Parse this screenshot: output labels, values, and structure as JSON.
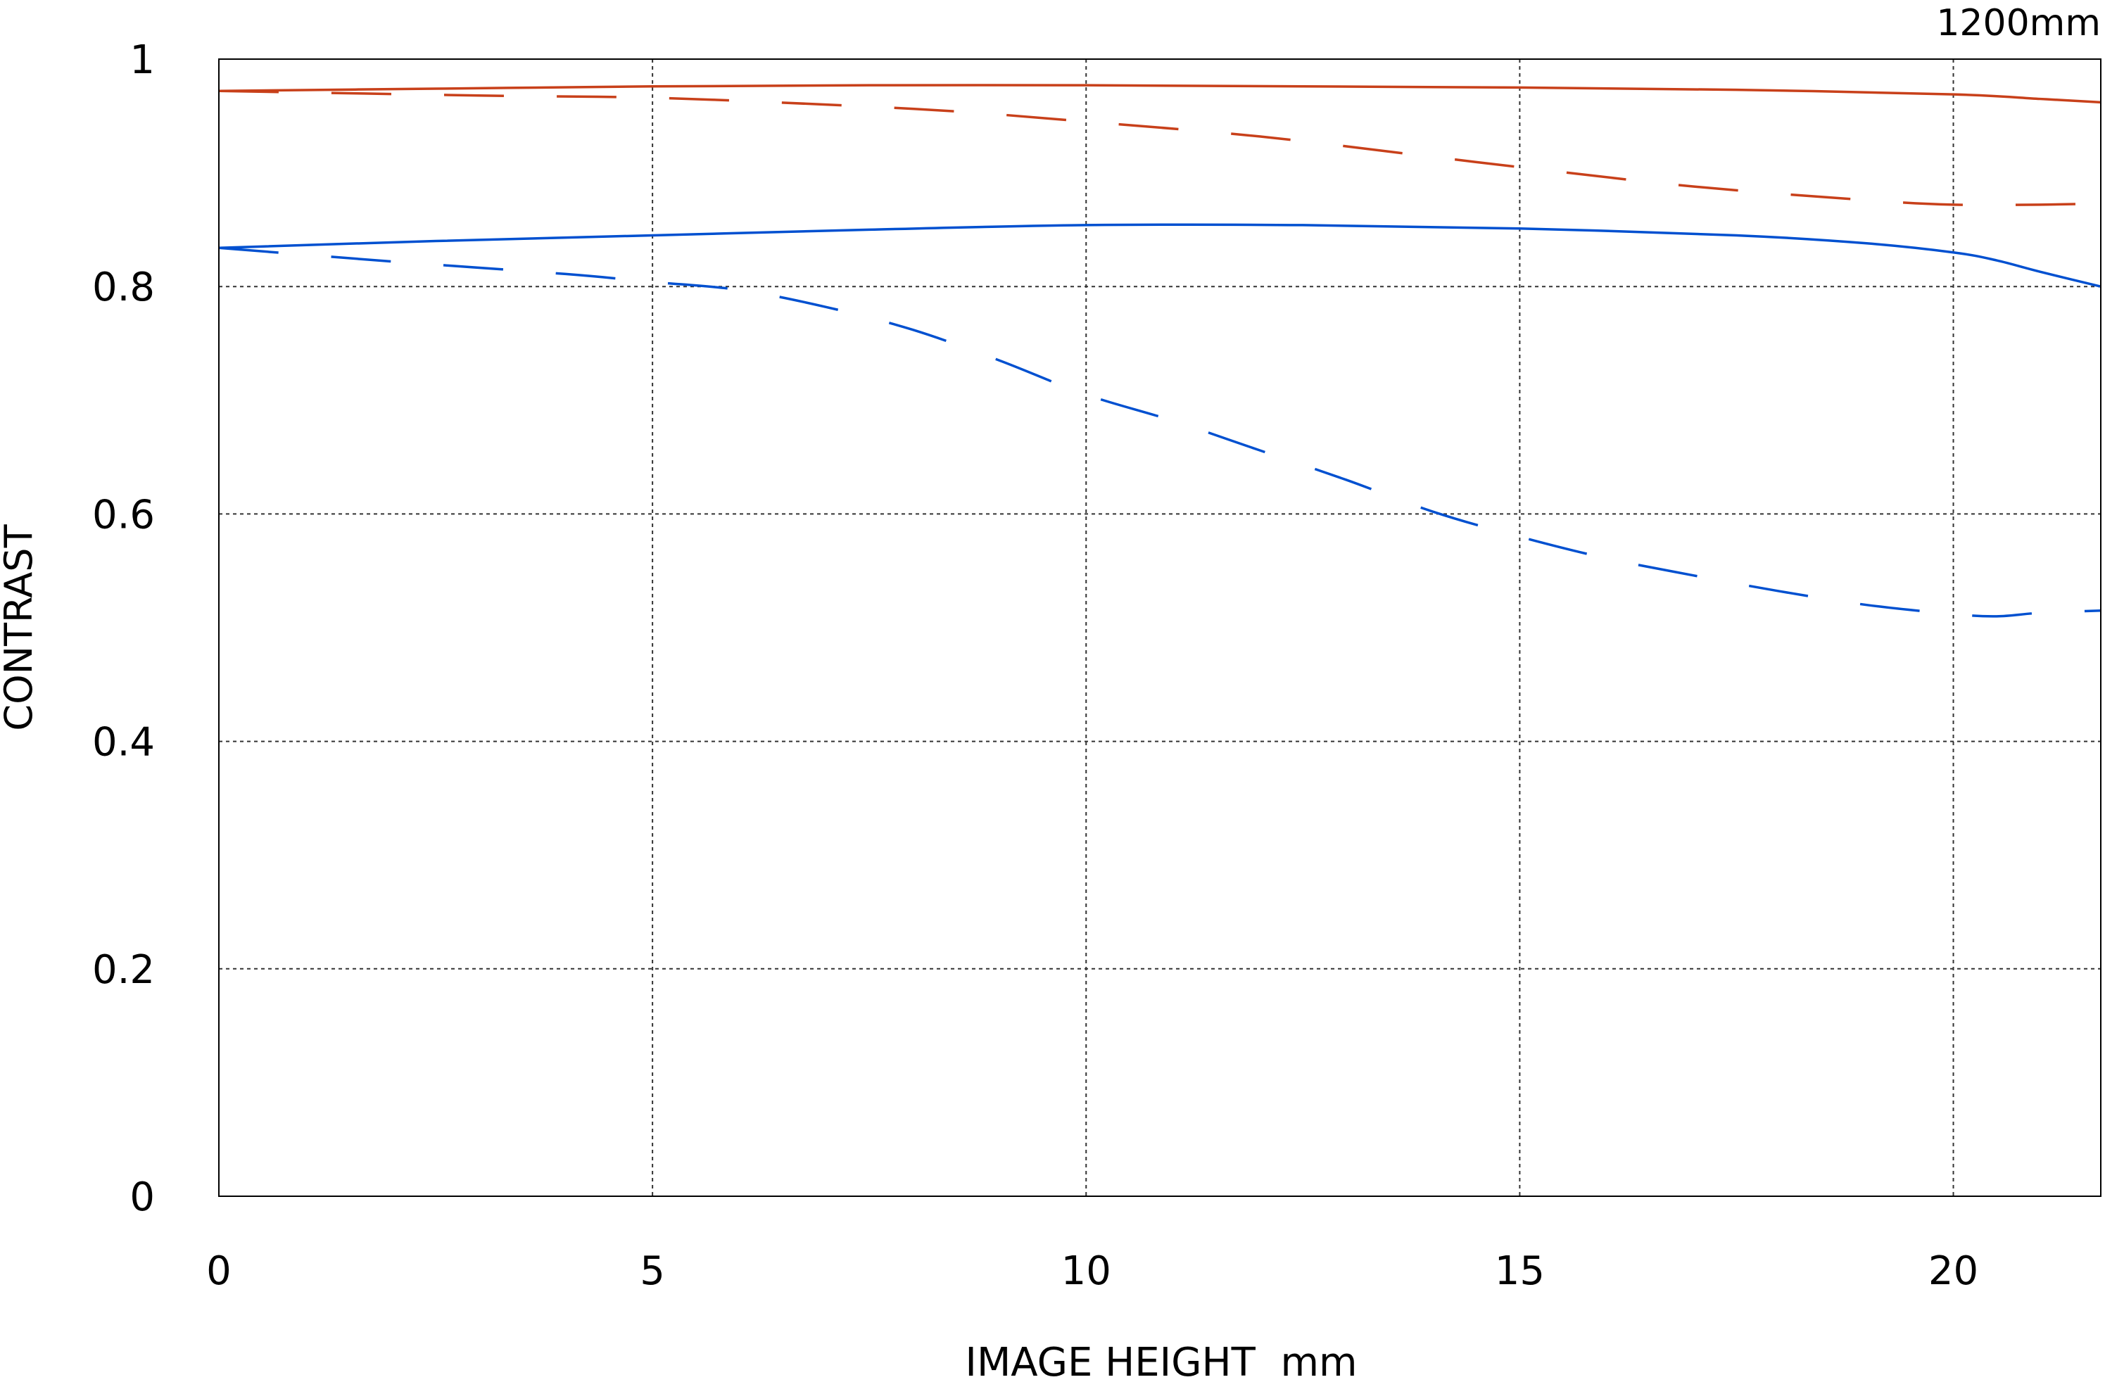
{
  "chart_data": {
    "type": "line",
    "title": "1200mm",
    "xlabel": "IMAGE HEIGHT  mm",
    "ylabel": "CONTRAST",
    "xlim": [
      0,
      21.7
    ],
    "ylim": [
      0,
      1
    ],
    "xticks": [
      0,
      5,
      10,
      15,
      20
    ],
    "xtick_labels": [
      "0",
      "5",
      "10",
      "15",
      "20"
    ],
    "yticks": [
      0,
      0.2,
      0.4,
      0.6,
      0.8,
      1
    ],
    "ytick_labels": [
      "0",
      "0.2",
      "0.4",
      "0.6",
      "0.8",
      "1"
    ],
    "grid": true,
    "series": [
      {
        "color": "#c8401a",
        "style": "solid",
        "x": [
          0,
          2.5,
          5,
          7.5,
          10,
          12.5,
          15,
          17.5,
          20,
          21,
          21.7
        ],
        "y": [
          0.972,
          0.974,
          0.976,
          0.977,
          0.977,
          0.976,
          0.975,
          0.973,
          0.969,
          0.965,
          0.962
        ]
      },
      {
        "color": "#c8401a",
        "style": "dashed",
        "x": [
          0,
          3,
          5,
          7,
          8.5,
          10,
          12,
          14,
          15,
          17,
          19,
          20,
          21,
          21.7
        ],
        "y": [
          0.972,
          0.968,
          0.966,
          0.96,
          0.954,
          0.945,
          0.932,
          0.914,
          0.905,
          0.888,
          0.876,
          0.872,
          0.872,
          0.873
        ]
      },
      {
        "color": "#0050d0",
        "style": "solid",
        "x": [
          0,
          2.5,
          5,
          7.5,
          10,
          12.5,
          15,
          17.5,
          19,
          20,
          20.5,
          21,
          21.7
        ],
        "y": [
          0.834,
          0.84,
          0.845,
          0.85,
          0.854,
          0.854,
          0.851,
          0.845,
          0.838,
          0.83,
          0.823,
          0.813,
          0.8
        ]
      },
      {
        "color": "#0050d0",
        "style": "dashed",
        "x": [
          0,
          2,
          4,
          5,
          6,
          7,
          8,
          9,
          10,
          11,
          12,
          13,
          14,
          15,
          16,
          17,
          18,
          19,
          20,
          20.5,
          21,
          21.7
        ],
        "y": [
          0.834,
          0.822,
          0.811,
          0.804,
          0.797,
          0.782,
          0.762,
          0.735,
          0.705,
          0.682,
          0.656,
          0.63,
          0.602,
          0.58,
          0.561,
          0.546,
          0.532,
          0.52,
          0.512,
          0.51,
          0.513,
          0.515
        ]
      }
    ]
  }
}
